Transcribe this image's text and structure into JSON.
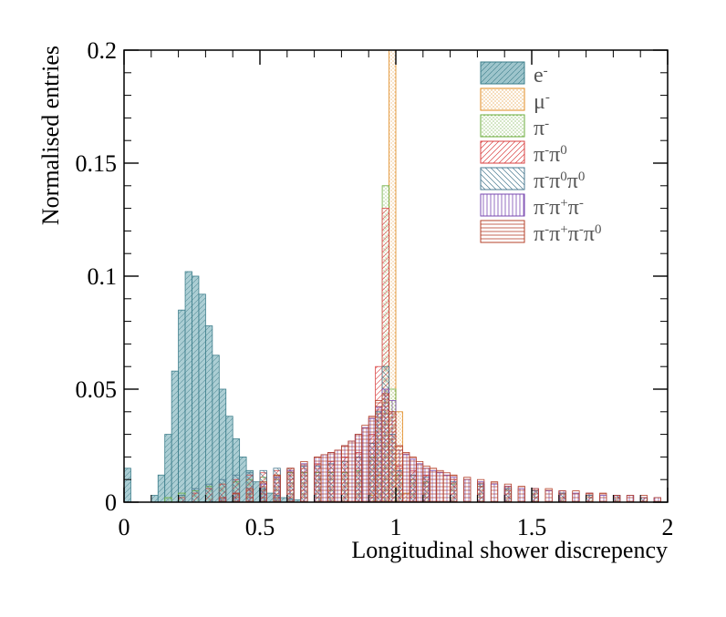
{
  "chart_data": {
    "type": "histogram",
    "title": "",
    "xlabel": "Longitudinal shower discrepency",
    "ylabel": "Normalised entries",
    "xlim": [
      0,
      2
    ],
    "ylim": [
      0,
      0.2
    ],
    "xticks": [
      "0",
      "0.5",
      "1",
      "1.5",
      "2"
    ],
    "yticks": [
      "0",
      "0.05",
      "0.1",
      "0.15",
      "0.2"
    ],
    "legend_position": "top-right",
    "bin_width": 0.025,
    "series": [
      {
        "name": "e-",
        "label_base": "e",
        "label_sup": "-",
        "color": "#3b7d8a",
        "hatch": "shaded",
        "bins": [
          {
            "x": 0.0,
            "y": 0.015
          },
          {
            "x": 0.1,
            "y": 0.003
          },
          {
            "x": 0.125,
            "y": 0.012
          },
          {
            "x": 0.15,
            "y": 0.03
          },
          {
            "x": 0.175,
            "y": 0.058
          },
          {
            "x": 0.2,
            "y": 0.085
          },
          {
            "x": 0.225,
            "y": 0.102
          },
          {
            "x": 0.25,
            "y": 0.1
          },
          {
            "x": 0.275,
            "y": 0.092
          },
          {
            "x": 0.3,
            "y": 0.078
          },
          {
            "x": 0.325,
            "y": 0.065
          },
          {
            "x": 0.35,
            "y": 0.05
          },
          {
            "x": 0.375,
            "y": 0.038
          },
          {
            "x": 0.4,
            "y": 0.028
          },
          {
            "x": 0.425,
            "y": 0.02
          },
          {
            "x": 0.45,
            "y": 0.014
          },
          {
            "x": 0.475,
            "y": 0.009
          },
          {
            "x": 0.5,
            "y": 0.006
          },
          {
            "x": 0.525,
            "y": 0.004
          },
          {
            "x": 0.55,
            "y": 0.003
          },
          {
            "x": 0.575,
            "y": 0.002
          },
          {
            "x": 0.6,
            "y": 0.0015
          },
          {
            "x": 0.625,
            "y": 0.001
          }
        ]
      },
      {
        "name": "μ-",
        "label_base": "μ",
        "label_sup": "-",
        "color": "#e08a1e",
        "hatch": "dots",
        "bins": [
          {
            "x": 0.9,
            "y": 0.003
          },
          {
            "x": 0.925,
            "y": 0.012
          },
          {
            "x": 0.95,
            "y": 0.06
          },
          {
            "x": 0.975,
            "y": 0.2
          },
          {
            "x": 1.0,
            "y": 0.04
          },
          {
            "x": 1.025,
            "y": 0.004
          }
        ]
      },
      {
        "name": "π-",
        "label_base": "π",
        "label_sup": "-",
        "color": "#6aab3a",
        "hatch": "dots",
        "bins": [
          {
            "x": 0.15,
            "y": 0.002
          },
          {
            "x": 0.2,
            "y": 0.004
          },
          {
            "x": 0.25,
            "y": 0.005
          },
          {
            "x": 0.3,
            "y": 0.007
          },
          {
            "x": 0.35,
            "y": 0.008
          },
          {
            "x": 0.4,
            "y": 0.009
          },
          {
            "x": 0.45,
            "y": 0.01
          },
          {
            "x": 0.5,
            "y": 0.011
          },
          {
            "x": 0.55,
            "y": 0.012
          },
          {
            "x": 0.6,
            "y": 0.013
          },
          {
            "x": 0.65,
            "y": 0.013
          },
          {
            "x": 0.7,
            "y": 0.013
          },
          {
            "x": 0.75,
            "y": 0.013
          },
          {
            "x": 0.8,
            "y": 0.013
          },
          {
            "x": 0.85,
            "y": 0.014
          },
          {
            "x": 0.9,
            "y": 0.02
          },
          {
            "x": 0.925,
            "y": 0.04
          },
          {
            "x": 0.95,
            "y": 0.14
          },
          {
            "x": 0.975,
            "y": 0.05
          },
          {
            "x": 1.0,
            "y": 0.012
          },
          {
            "x": 1.05,
            "y": 0.01
          },
          {
            "x": 1.1,
            "y": 0.009
          },
          {
            "x": 1.2,
            "y": 0.008
          },
          {
            "x": 1.3,
            "y": 0.007
          },
          {
            "x": 1.4,
            "y": 0.006
          },
          {
            "x": 1.5,
            "y": 0.005
          },
          {
            "x": 1.6,
            "y": 0.004
          },
          {
            "x": 1.7,
            "y": 0.003
          },
          {
            "x": 1.8,
            "y": 0.003
          },
          {
            "x": 1.9,
            "y": 0.002
          }
        ]
      },
      {
        "name": "π-π0",
        "label_base": "π",
        "label_sup": "-",
        "label_base2": "π",
        "label_sup2": "0",
        "color": "#d94040",
        "hatch": "diag-right",
        "bins": [
          {
            "x": 0.2,
            "y": 0.002
          },
          {
            "x": 0.25,
            "y": 0.004
          },
          {
            "x": 0.3,
            "y": 0.006
          },
          {
            "x": 0.35,
            "y": 0.008
          },
          {
            "x": 0.4,
            "y": 0.01
          },
          {
            "x": 0.45,
            "y": 0.012
          },
          {
            "x": 0.5,
            "y": 0.013
          },
          {
            "x": 0.55,
            "y": 0.014
          },
          {
            "x": 0.6,
            "y": 0.015
          },
          {
            "x": 0.65,
            "y": 0.016
          },
          {
            "x": 0.7,
            "y": 0.017
          },
          {
            "x": 0.75,
            "y": 0.018
          },
          {
            "x": 0.8,
            "y": 0.02
          },
          {
            "x": 0.85,
            "y": 0.022
          },
          {
            "x": 0.9,
            "y": 0.03
          },
          {
            "x": 0.925,
            "y": 0.06
          },
          {
            "x": 0.95,
            "y": 0.13
          },
          {
            "x": 0.975,
            "y": 0.04
          },
          {
            "x": 1.0,
            "y": 0.016
          },
          {
            "x": 1.05,
            "y": 0.014
          },
          {
            "x": 1.1,
            "y": 0.012
          },
          {
            "x": 1.2,
            "y": 0.01
          },
          {
            "x": 1.3,
            "y": 0.008
          },
          {
            "x": 1.4,
            "y": 0.007
          },
          {
            "x": 1.5,
            "y": 0.005
          },
          {
            "x": 1.6,
            "y": 0.004
          },
          {
            "x": 1.7,
            "y": 0.003
          },
          {
            "x": 1.8,
            "y": 0.003
          },
          {
            "x": 1.9,
            "y": 0.002
          }
        ]
      },
      {
        "name": "π-π0π0",
        "label_base": "π",
        "label_sup": "-",
        "label_base2": "π",
        "label_sup2": "0",
        "label_base3": "π",
        "label_sup3": "0",
        "color": "#4a7a90",
        "hatch": "diag-left",
        "bins": [
          {
            "x": 0.2,
            "y": 0.003
          },
          {
            "x": 0.25,
            "y": 0.006
          },
          {
            "x": 0.3,
            "y": 0.008
          },
          {
            "x": 0.35,
            "y": 0.01
          },
          {
            "x": 0.4,
            "y": 0.012
          },
          {
            "x": 0.45,
            "y": 0.013
          },
          {
            "x": 0.5,
            "y": 0.014
          },
          {
            "x": 0.55,
            "y": 0.015
          },
          {
            "x": 0.6,
            "y": 0.015
          },
          {
            "x": 0.65,
            "y": 0.016
          },
          {
            "x": 0.7,
            "y": 0.016
          },
          {
            "x": 0.75,
            "y": 0.017
          },
          {
            "x": 0.8,
            "y": 0.018
          },
          {
            "x": 0.85,
            "y": 0.02
          },
          {
            "x": 0.9,
            "y": 0.026
          },
          {
            "x": 0.925,
            "y": 0.04
          },
          {
            "x": 0.95,
            "y": 0.06
          },
          {
            "x": 0.975,
            "y": 0.03
          },
          {
            "x": 1.0,
            "y": 0.014
          },
          {
            "x": 1.05,
            "y": 0.012
          },
          {
            "x": 1.1,
            "y": 0.011
          },
          {
            "x": 1.2,
            "y": 0.009
          },
          {
            "x": 1.3,
            "y": 0.008
          },
          {
            "x": 1.4,
            "y": 0.006
          },
          {
            "x": 1.5,
            "y": 0.005
          },
          {
            "x": 1.6,
            "y": 0.004
          },
          {
            "x": 1.7,
            "y": 0.003
          },
          {
            "x": 1.8,
            "y": 0.003
          },
          {
            "x": 1.9,
            "y": 0.002
          }
        ]
      },
      {
        "name": "π-π+π-",
        "label_base": "π",
        "label_sup": "-",
        "label_base2": "π",
        "label_sup2": "+",
        "label_base3": "π",
        "label_sup3": "-",
        "color": "#7a4ab0",
        "hatch": "vertical",
        "bins": [
          {
            "x": 0.35,
            "y": 0.002
          },
          {
            "x": 0.4,
            "y": 0.004
          },
          {
            "x": 0.45,
            "y": 0.006
          },
          {
            "x": 0.5,
            "y": 0.008
          },
          {
            "x": 0.55,
            "y": 0.011
          },
          {
            "x": 0.6,
            "y": 0.014
          },
          {
            "x": 0.65,
            "y": 0.017
          },
          {
            "x": 0.7,
            "y": 0.02
          },
          {
            "x": 0.725,
            "y": 0.021
          },
          {
            "x": 0.75,
            "y": 0.022
          },
          {
            "x": 0.775,
            "y": 0.023
          },
          {
            "x": 0.8,
            "y": 0.025
          },
          {
            "x": 0.825,
            "y": 0.027
          },
          {
            "x": 0.85,
            "y": 0.03
          },
          {
            "x": 0.875,
            "y": 0.033
          },
          {
            "x": 0.9,
            "y": 0.037
          },
          {
            "x": 0.925,
            "y": 0.042
          },
          {
            "x": 0.95,
            "y": 0.05
          },
          {
            "x": 0.975,
            "y": 0.045
          },
          {
            "x": 1.0,
            "y": 0.023
          },
          {
            "x": 1.025,
            "y": 0.021
          },
          {
            "x": 1.05,
            "y": 0.019
          },
          {
            "x": 1.075,
            "y": 0.017
          },
          {
            "x": 1.1,
            "y": 0.015
          },
          {
            "x": 1.125,
            "y": 0.014
          },
          {
            "x": 1.15,
            "y": 0.013
          },
          {
            "x": 1.175,
            "y": 0.012
          },
          {
            "x": 1.2,
            "y": 0.011
          },
          {
            "x": 1.25,
            "y": 0.01
          },
          {
            "x": 1.3,
            "y": 0.009
          },
          {
            "x": 1.35,
            "y": 0.008
          },
          {
            "x": 1.4,
            "y": 0.007
          },
          {
            "x": 1.45,
            "y": 0.006
          },
          {
            "x": 1.5,
            "y": 0.006
          },
          {
            "x": 1.55,
            "y": 0.005
          },
          {
            "x": 1.6,
            "y": 0.005
          },
          {
            "x": 1.65,
            "y": 0.004
          },
          {
            "x": 1.7,
            "y": 0.004
          },
          {
            "x": 1.75,
            "y": 0.003
          },
          {
            "x": 1.8,
            "y": 0.003
          },
          {
            "x": 1.85,
            "y": 0.003
          },
          {
            "x": 1.9,
            "y": 0.002
          },
          {
            "x": 1.95,
            "y": 0.002
          }
        ]
      },
      {
        "name": "π-π+π-π0",
        "label_base": "π",
        "label_sup": "-",
        "label_base2": "π",
        "label_sup2": "+",
        "label_base3": "π",
        "label_sup3": "-",
        "label_base4": "π",
        "label_sup4": "0",
        "color": "#b5402a",
        "hatch": "horizontal",
        "bins": [
          {
            "x": 0.35,
            "y": 0.002
          },
          {
            "x": 0.4,
            "y": 0.004
          },
          {
            "x": 0.45,
            "y": 0.006
          },
          {
            "x": 0.5,
            "y": 0.009
          },
          {
            "x": 0.55,
            "y": 0.012
          },
          {
            "x": 0.6,
            "y": 0.015
          },
          {
            "x": 0.65,
            "y": 0.018
          },
          {
            "x": 0.7,
            "y": 0.02
          },
          {
            "x": 0.725,
            "y": 0.021
          },
          {
            "x": 0.75,
            "y": 0.022
          },
          {
            "x": 0.775,
            "y": 0.023
          },
          {
            "x": 0.8,
            "y": 0.025
          },
          {
            "x": 0.825,
            "y": 0.027
          },
          {
            "x": 0.85,
            "y": 0.03
          },
          {
            "x": 0.875,
            "y": 0.034
          },
          {
            "x": 0.9,
            "y": 0.038
          },
          {
            "x": 0.925,
            "y": 0.045
          },
          {
            "x": 0.95,
            "y": 0.048
          },
          {
            "x": 0.975,
            "y": 0.04
          },
          {
            "x": 1.0,
            "y": 0.025
          },
          {
            "x": 1.025,
            "y": 0.022
          },
          {
            "x": 1.05,
            "y": 0.02
          },
          {
            "x": 1.075,
            "y": 0.018
          },
          {
            "x": 1.1,
            "y": 0.016
          },
          {
            "x": 1.125,
            "y": 0.015
          },
          {
            "x": 1.15,
            "y": 0.014
          },
          {
            "x": 1.175,
            "y": 0.013
          },
          {
            "x": 1.2,
            "y": 0.012
          },
          {
            "x": 1.25,
            "y": 0.011
          },
          {
            "x": 1.3,
            "y": 0.01
          },
          {
            "x": 1.35,
            "y": 0.009
          },
          {
            "x": 1.4,
            "y": 0.008
          },
          {
            "x": 1.45,
            "y": 0.007
          },
          {
            "x": 1.5,
            "y": 0.006
          },
          {
            "x": 1.55,
            "y": 0.006
          },
          {
            "x": 1.6,
            "y": 0.005
          },
          {
            "x": 1.65,
            "y": 0.005
          },
          {
            "x": 1.7,
            "y": 0.004
          },
          {
            "x": 1.75,
            "y": 0.004
          },
          {
            "x": 1.8,
            "y": 0.003
          },
          {
            "x": 1.85,
            "y": 0.003
          },
          {
            "x": 1.9,
            "y": 0.003
          },
          {
            "x": 1.95,
            "y": 0.002
          }
        ]
      }
    ]
  }
}
